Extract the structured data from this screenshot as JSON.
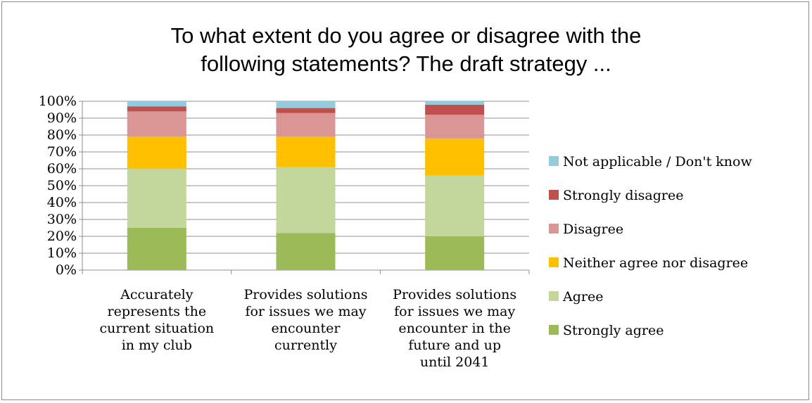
{
  "chart_data": {
    "type": "bar",
    "stacked": true,
    "percent": true,
    "title_lines": [
      "To what extent do you agree or disagree with the",
      "following statements? The draft strategy ..."
    ],
    "categories": [
      [
        "Accurately",
        "represents the",
        "current situation",
        "in my club"
      ],
      [
        "Provides solutions",
        "for issues we may",
        "encounter",
        "currently"
      ],
      [
        "Provides solutions",
        "for issues we may",
        "encounter in the",
        "future and up",
        "until 2041"
      ]
    ],
    "series": [
      {
        "name": "Strongly agree",
        "color": "#9bbb59",
        "values": [
          25,
          22,
          20
        ]
      },
      {
        "name": "Agree",
        "color": "#c3d69b",
        "values": [
          35,
          39,
          36
        ]
      },
      {
        "name": "Neither agree nor disagree",
        "color": "#ffc000",
        "values": [
          19,
          18,
          22
        ]
      },
      {
        "name": "Disagree",
        "color": "#d99694",
        "values": [
          15,
          14,
          14
        ]
      },
      {
        "name": "Strongly disagree",
        "color": "#c0504d",
        "values": [
          3,
          3,
          6
        ]
      },
      {
        "name": "Not applicable / Don't know",
        "color": "#93cddd",
        "values": [
          3,
          4,
          2
        ]
      }
    ],
    "y_ticks": [
      "0%",
      "10%",
      "20%",
      "30%",
      "40%",
      "50%",
      "60%",
      "70%",
      "80%",
      "90%",
      "100%"
    ],
    "ylim": [
      0,
      100
    ],
    "grid": true,
    "legend_position": "right"
  }
}
